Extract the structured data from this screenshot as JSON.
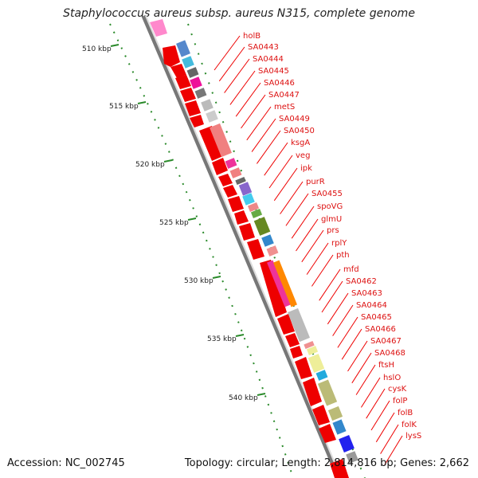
{
  "title": "Staphylococcus aureus subsp. aureus N315, complete genome",
  "footer": {
    "accession": "Accession: NC_002745",
    "summary": "Topology: circular; Length: 2,814,816 bp; Genes: 2,662"
  },
  "scale": {
    "ticks": [
      "510 kbp",
      "515 kbp",
      "520 kbp",
      "525 kbp",
      "530 kbp",
      "535 kbp",
      "540 kbp"
    ]
  },
  "genes": [
    "holB",
    "SA0443",
    "SA0444",
    "SA0445",
    "SA0446",
    "SA0447",
    "metS",
    "SA0449",
    "SA0450",
    "ksgA",
    "veg",
    "ipk",
    "purR",
    "SA0455",
    "spoVG",
    "glmU",
    "prs",
    "rplY",
    "pth",
    "mfd",
    "SA0462",
    "SA0463",
    "SA0464",
    "SA0465",
    "SA0466",
    "SA0467",
    "SA0468",
    "ftsH",
    "hslO",
    "cysK",
    "folP",
    "folB",
    "folK",
    "lysS"
  ],
  "colors": {
    "forward_strand": "#ee0000",
    "label": "#dd1111",
    "tick": "#227722",
    "backbone": "#888888"
  }
}
